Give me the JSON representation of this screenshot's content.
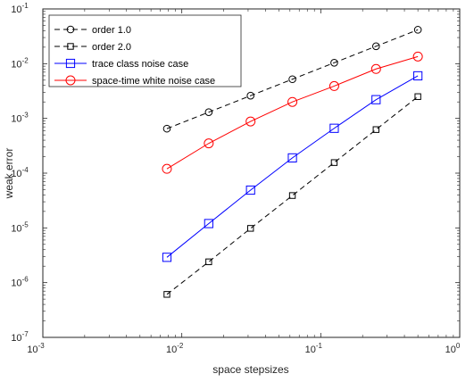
{
  "chart_data": {
    "type": "line",
    "xlabel": "space stepsizes",
    "ylabel": "weak error",
    "xscale": "log",
    "yscale": "log",
    "xlim": [
      0.001,
      1
    ],
    "ylim": [
      1e-07,
      0.1
    ],
    "x_ticks": [
      {
        "base": "10",
        "exp": "-3"
      },
      {
        "base": "10",
        "exp": "-2"
      },
      {
        "base": "10",
        "exp": "-1"
      },
      {
        "base": "10",
        "exp": "0"
      }
    ],
    "y_ticks": [
      {
        "base": "10",
        "exp": "-7"
      },
      {
        "base": "10",
        "exp": "-6"
      },
      {
        "base": "10",
        "exp": "-5"
      },
      {
        "base": "10",
        "exp": "-4"
      },
      {
        "base": "10",
        "exp": "-3"
      },
      {
        "base": "10",
        "exp": "-2"
      },
      {
        "base": "10",
        "exp": "-1"
      }
    ],
    "grid": false,
    "legend_position": "top-left",
    "x": [
      0.0078125,
      0.015625,
      0.03125,
      0.0625,
      0.125,
      0.25,
      0.5
    ],
    "series": [
      {
        "name": "order 1.0",
        "values": [
          0.00065,
          0.0013,
          0.0026,
          0.0052,
          0.0104,
          0.0208,
          0.0416
        ],
        "color": "#000000",
        "line_style": "dashed",
        "marker": "circle"
      },
      {
        "name": "order 2.0",
        "values": [
          6.1e-07,
          2.4e-06,
          9.8e-06,
          3.9e-05,
          0.000156,
          0.000625,
          0.0025
        ],
        "color": "#000000",
        "line_style": "dashed",
        "marker": "square"
      },
      {
        "name": "trace class noise case",
        "values": [
          2.9e-06,
          1.2e-05,
          4.9e-05,
          0.00019,
          0.00066,
          0.0022,
          0.006
        ],
        "color": "#0000ff",
        "line_style": "solid",
        "marker": "square"
      },
      {
        "name": "space-time white noise case",
        "values": [
          0.00012,
          0.00035,
          0.00088,
          0.002,
          0.0039,
          0.008,
          0.0135
        ],
        "color": "#ff0000",
        "line_style": "solid",
        "marker": "circle"
      }
    ]
  }
}
